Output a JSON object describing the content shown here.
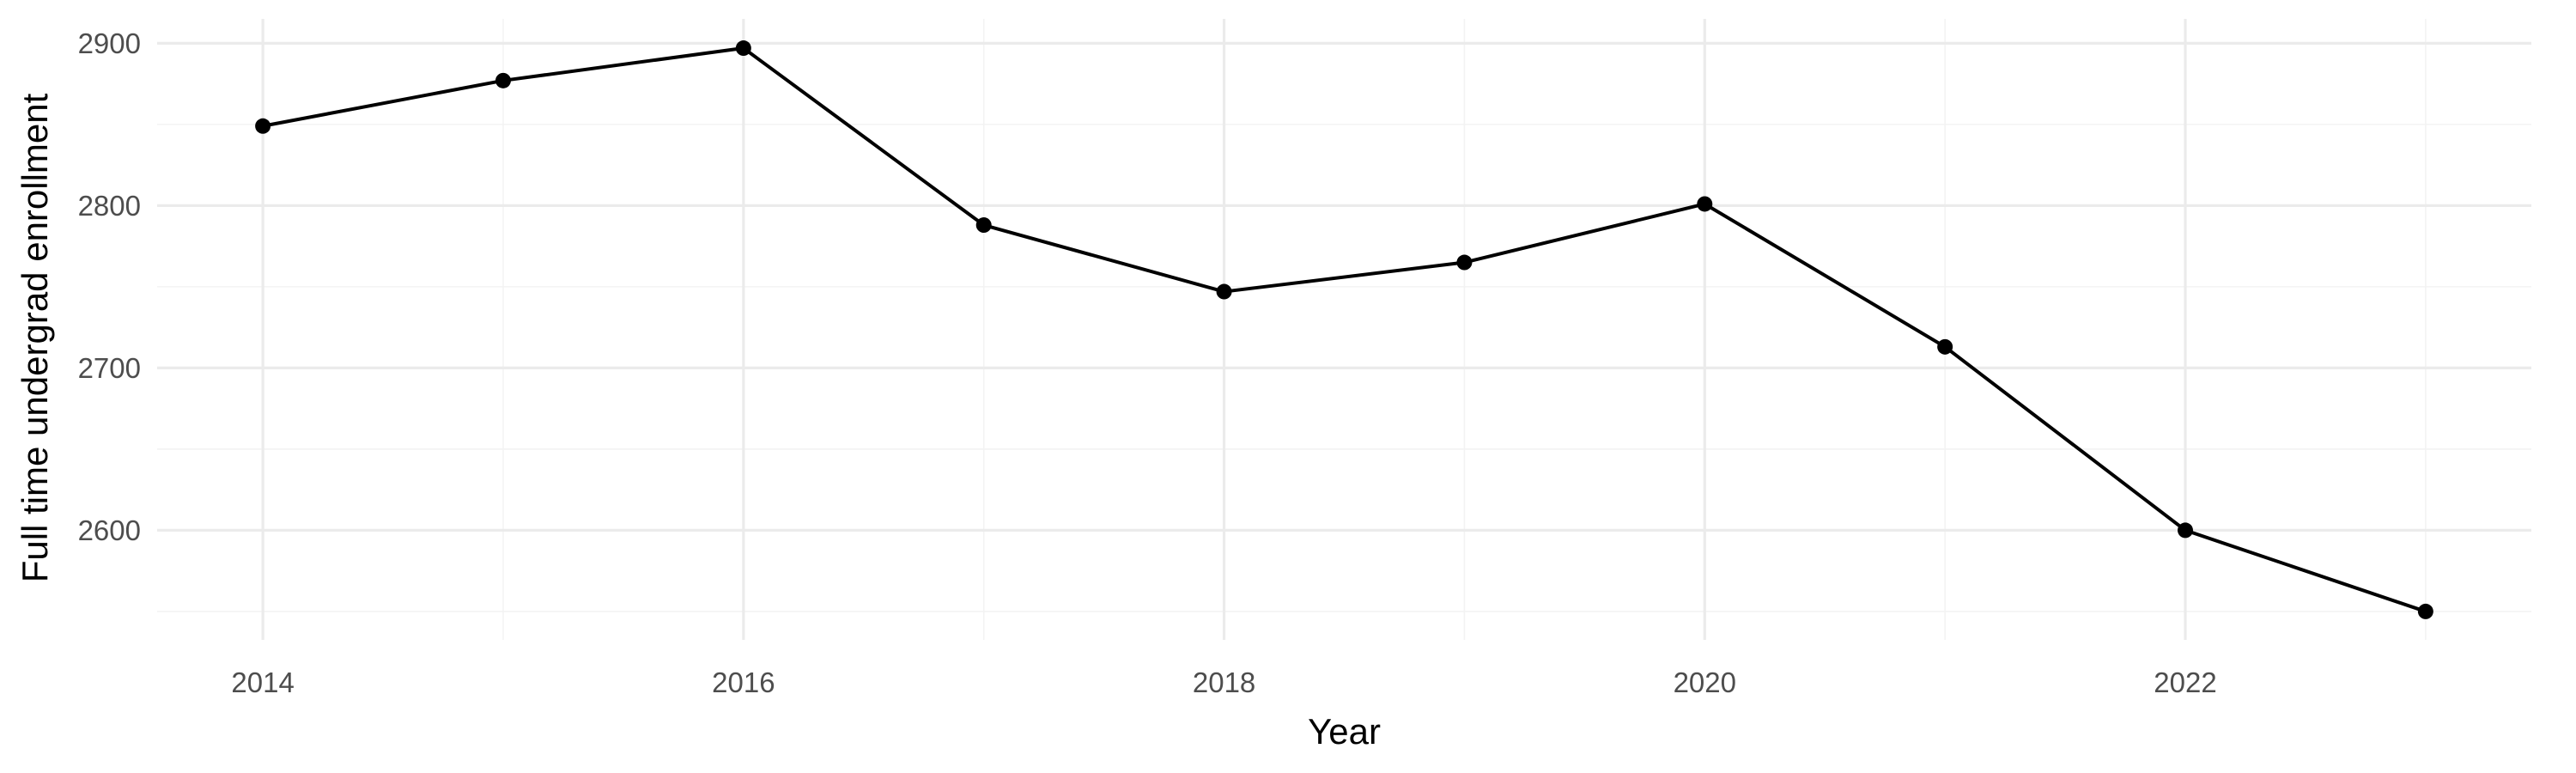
{
  "chart_data": {
    "type": "line",
    "title": "",
    "xlabel": "Year",
    "ylabel": "Full time undergrad enrollment",
    "x": [
      2014,
      2015,
      2016,
      2017,
      2018,
      2019,
      2020,
      2021,
      2022,
      2023
    ],
    "series": [
      {
        "values": [
          2849,
          2877,
          2897,
          2788,
          2747,
          2765,
          2801,
          2713,
          2600,
          2550
        ]
      }
    ],
    "xlim": [
      2013.56,
      2023.44
    ],
    "ylim": [
      2532.5,
      2915
    ],
    "x_ticks": [
      2014,
      2016,
      2018,
      2020,
      2022
    ],
    "x_tick_labels": [
      "2014",
      "2016",
      "2018",
      "2020",
      "2022"
    ],
    "x_minor_ticks": [
      2015,
      2017,
      2019,
      2021,
      2023
    ],
    "y_ticks": [
      2600,
      2700,
      2800,
      2900
    ],
    "y_tick_labels": [
      "2600",
      "2700",
      "2800",
      "2900"
    ],
    "y_minor_ticks": [
      2550,
      2650,
      2750,
      2850
    ],
    "grid": true,
    "legend": "none",
    "colors": {
      "line": "#000000",
      "points": "#000000",
      "grid": "#ebebeb",
      "background": "#ffffff"
    }
  }
}
